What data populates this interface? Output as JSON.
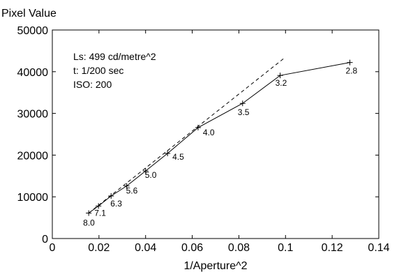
{
  "chart_data": {
    "type": "line",
    "title": "",
    "xlabel": "1/Aperture^2",
    "ylabel": "Pixel Value",
    "xlim": [
      0,
      0.14
    ],
    "ylim": [
      0,
      50000
    ],
    "xticks": [
      0,
      0.02,
      0.04,
      0.06,
      0.08,
      0.1,
      0.12,
      0.14
    ],
    "xtick_labels": [
      "0",
      "0.02",
      "0.04",
      "0.06",
      "0.08",
      "0.1",
      "0.12",
      "0.14"
    ],
    "yticks": [
      0,
      10000,
      20000,
      30000,
      40000,
      50000
    ],
    "ytick_labels": [
      "0",
      "10000",
      "20000",
      "30000",
      "40000",
      "50000"
    ],
    "grid": false,
    "annotations": [
      "Ls: 499 cd/metre^2",
      "t: 1/200 sec",
      "ISO: 200"
    ],
    "series": [
      {
        "style": "solid",
        "marker": "+",
        "x": [
          0.0156,
          0.0198,
          0.0252,
          0.0319,
          0.04,
          0.0494,
          0.0625,
          0.0816,
          0.0977,
          0.1276
        ],
        "y": [
          6100,
          7800,
          10200,
          12600,
          16200,
          20400,
          26600,
          32400,
          39100,
          42200
        ],
        "labels": [
          "8.0",
          "7.1",
          "6.3",
          "5.6",
          "5.0",
          "4.5",
          "4.0",
          "3.5",
          "3.2",
          "2.8"
        ]
      },
      {
        "style": "dashed",
        "x": [
          0.0156,
          0.1
        ],
        "y": [
          6100,
          43500
        ]
      }
    ]
  }
}
